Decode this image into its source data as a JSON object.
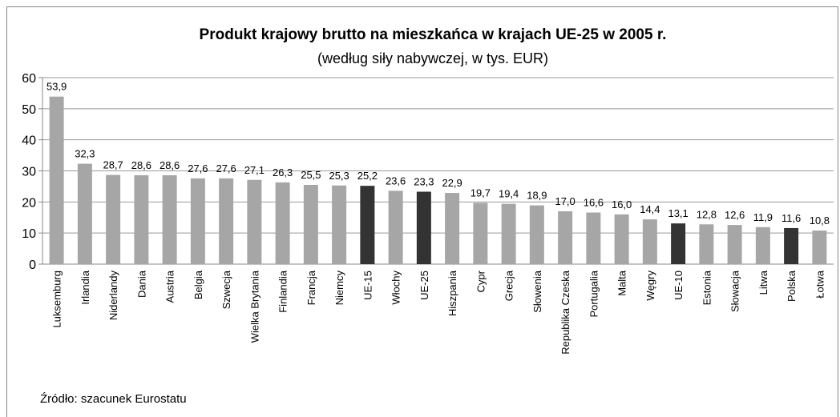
{
  "chart_data": {
    "type": "bar",
    "title": "Produkt krajowy brutto na mieszkańca w krajach UE-25 w 2005 r.",
    "subtitle": "(według siły nabywczej, w tys. EUR)",
    "source": "Źródło: szacunek Eurostatu",
    "categories": [
      "Luksemburg",
      "Irlandia",
      "Niderlandy",
      "Dania",
      "Austria",
      "Belgia",
      "Szwecja",
      "Wielka Brytania",
      "Finlandia",
      "Francja",
      "Niemcy",
      "UE-15",
      "Włochy",
      "UE-25",
      "Hiszpania",
      "Cypr",
      "Grecja",
      "Słowenia",
      "Republika Czeska",
      "Portugalia",
      "Malta",
      "Węgry",
      "UE-10",
      "Estonia",
      "Słowacja",
      "Litwa",
      "Polska",
      "Łotwa"
    ],
    "values": [
      53.9,
      32.3,
      28.7,
      28.6,
      28.6,
      27.6,
      27.6,
      27.1,
      26.3,
      25.5,
      25.3,
      25.2,
      23.6,
      23.3,
      22.9,
      19.7,
      19.4,
      18.9,
      17.0,
      16.6,
      16.0,
      14.4,
      13.1,
      12.8,
      12.6,
      11.9,
      11.6,
      10.8
    ],
    "value_labels": [
      "53,9",
      "32,3",
      "28,7",
      "28,6",
      "28,6",
      "27,6",
      "27,6",
      "27,1",
      "26,3",
      "25,5",
      "25,3",
      "25,2",
      "23,6",
      "23,3",
      "22,9",
      "19,7",
      "19,4",
      "18,9",
      "17,0",
      "16,6",
      "16,0",
      "14,4",
      "13,1",
      "12,8",
      "12,6",
      "11,9",
      "11,6",
      "10,8"
    ],
    "colors": [
      "#a6a6a6",
      "#a6a6a6",
      "#a6a6a6",
      "#a6a6a6",
      "#a6a6a6",
      "#a6a6a6",
      "#a6a6a6",
      "#a6a6a6",
      "#a6a6a6",
      "#a6a6a6",
      "#a6a6a6",
      "#333333",
      "#a6a6a6",
      "#333333",
      "#a6a6a6",
      "#a6a6a6",
      "#a6a6a6",
      "#a6a6a6",
      "#a6a6a6",
      "#a6a6a6",
      "#a6a6a6",
      "#a6a6a6",
      "#333333",
      "#a6a6a6",
      "#a6a6a6",
      "#a6a6a6",
      "#333333",
      "#a6a6a6"
    ],
    "ylim": [
      0,
      60
    ],
    "yticks": [
      0,
      10,
      20,
      30,
      40,
      50,
      60
    ],
    "grid": true
  }
}
